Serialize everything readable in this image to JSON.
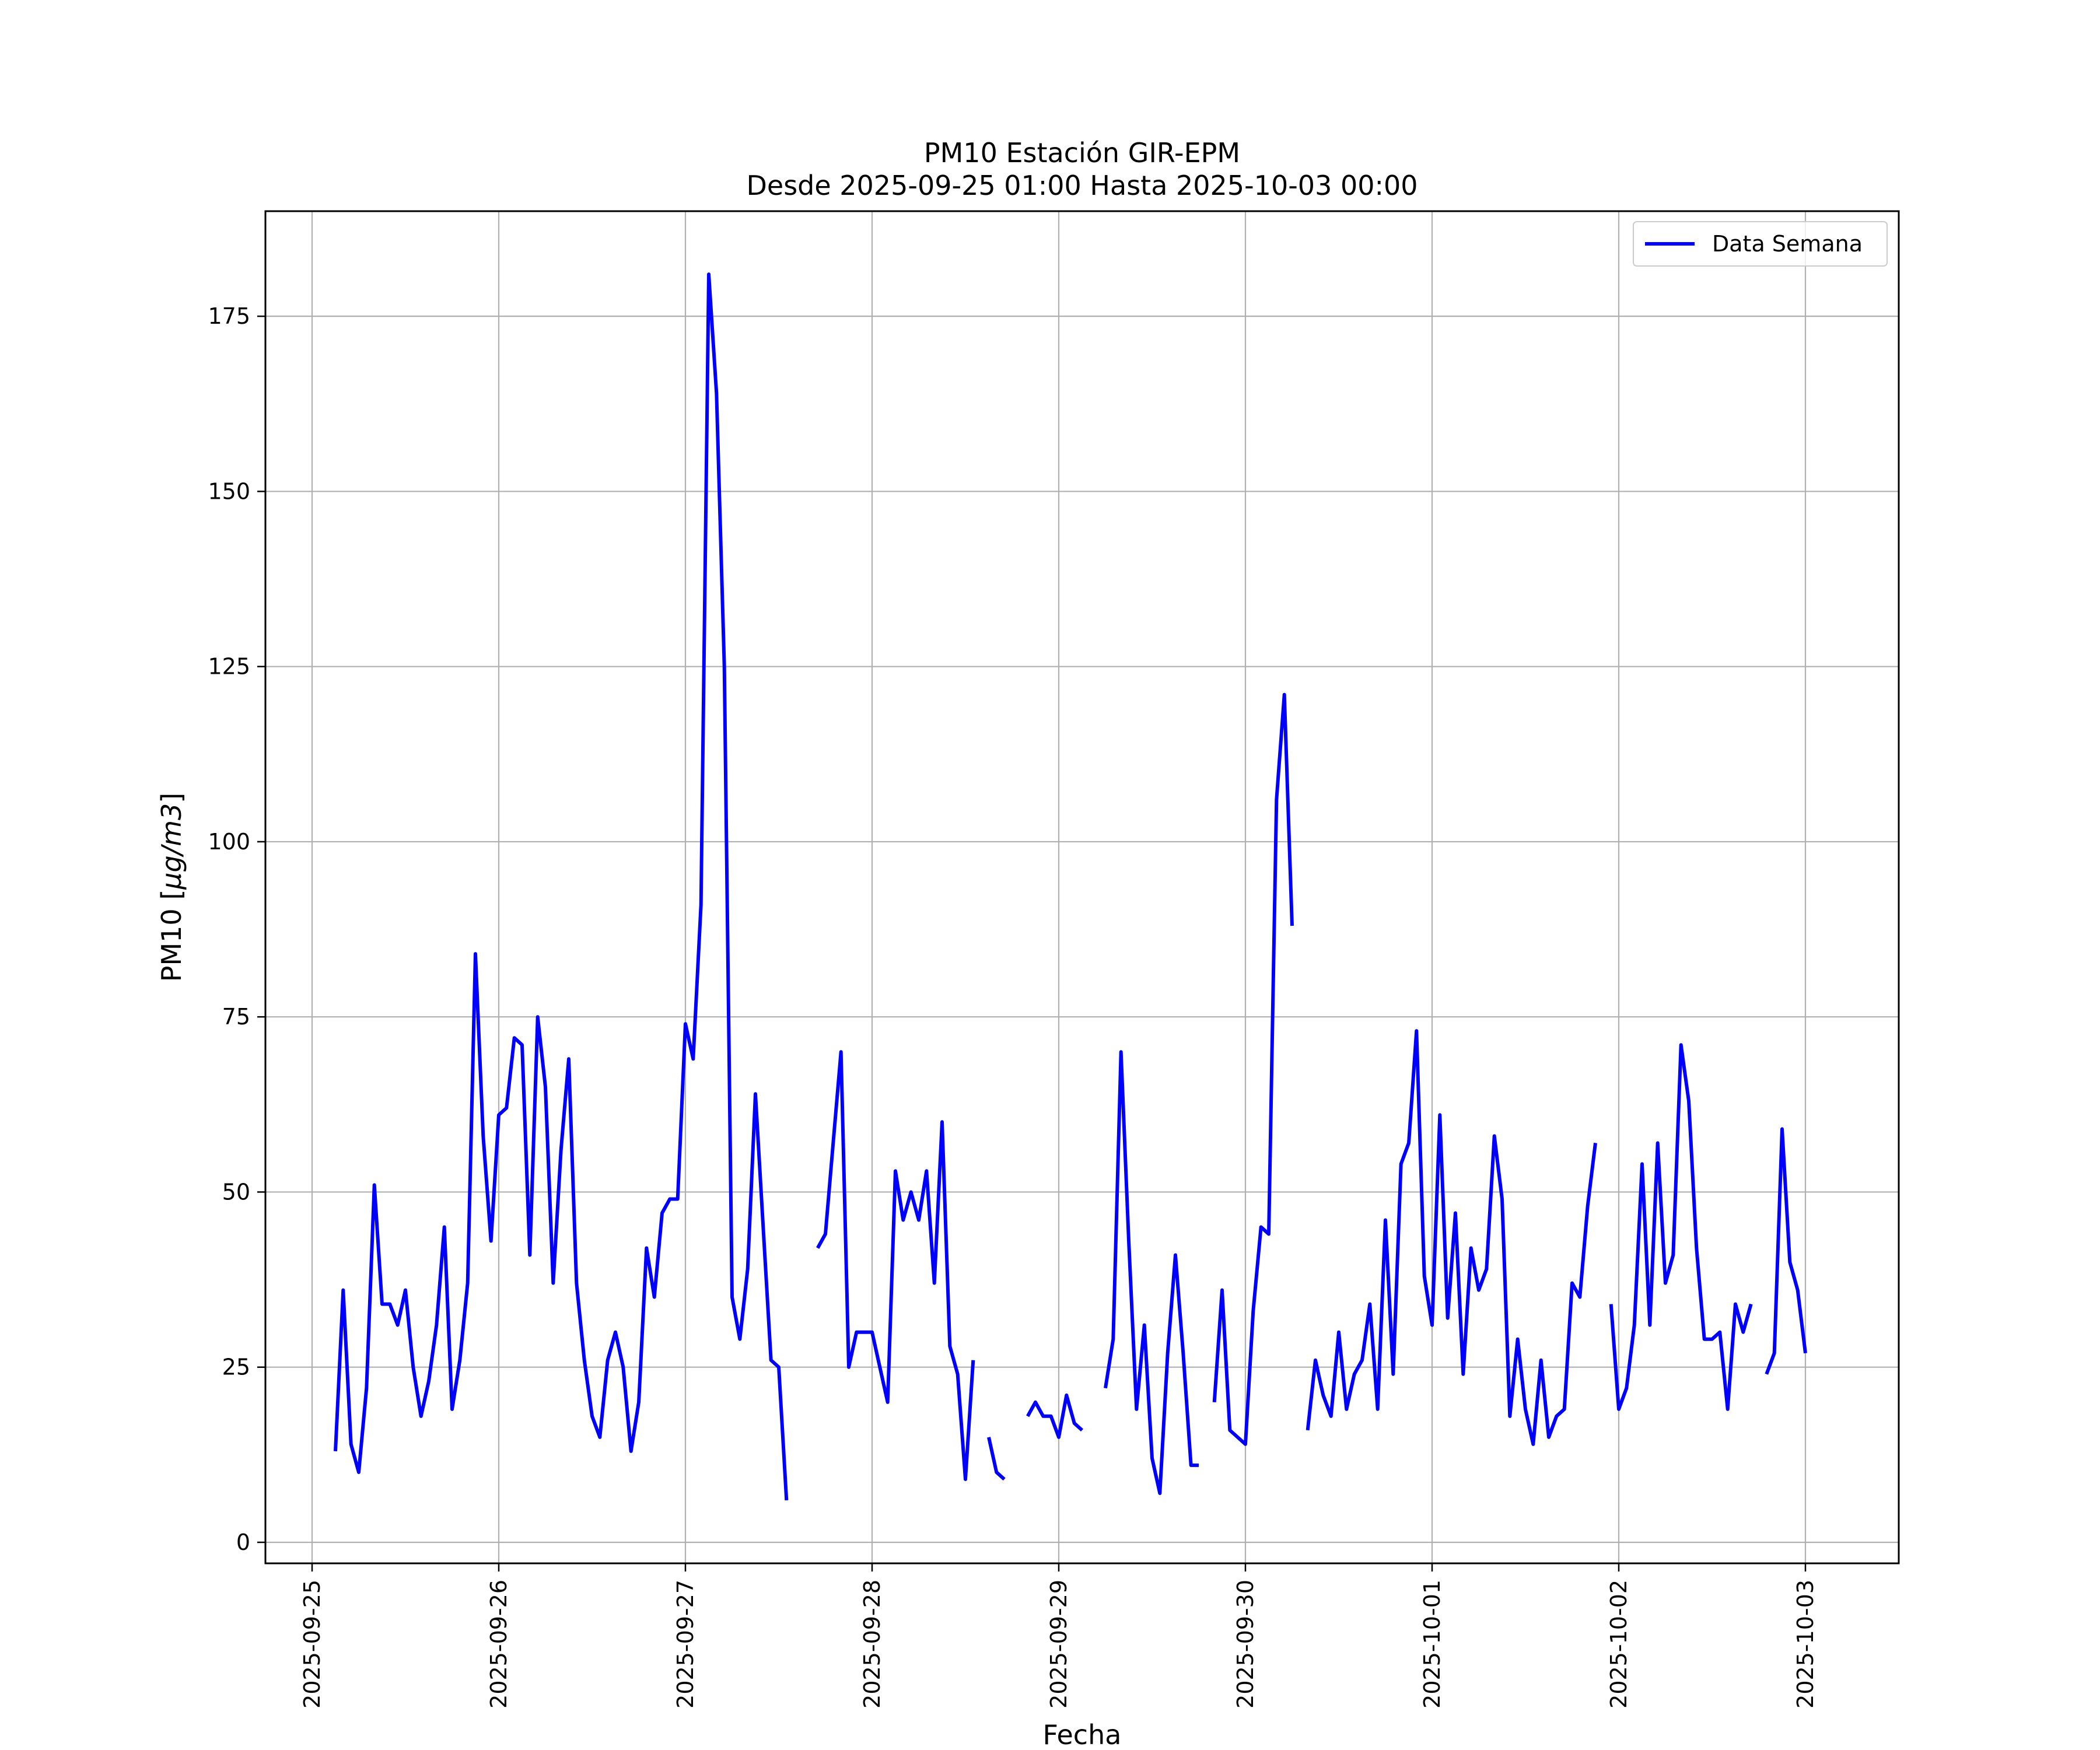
{
  "chart_data": {
    "type": "line",
    "title": "PM10 Estación GIR-EPM",
    "subtitle": "Desde 2025-09-25 01:00 Hasta 2025-10-03 00:00",
    "xlabel": "Fecha",
    "ylabel_prefix": "PM10 [",
    "ylabel_unit": "μg/m3",
    "ylabel_suffix": "]",
    "ylim": [
      -3,
      190
    ],
    "xlim": [
      "2025-09-24 18:00",
      "2025-10-03 12:00"
    ],
    "grid": true,
    "legend_position": "top-right",
    "x_ticks": [
      "2025-09-25",
      "2025-09-26",
      "2025-09-27",
      "2025-09-28",
      "2025-09-29",
      "2025-09-30",
      "2025-10-01",
      "2025-10-02",
      "2025-10-03"
    ],
    "y_ticks": [
      0,
      25,
      50,
      75,
      100,
      125,
      150,
      175
    ],
    "series": [
      {
        "name": "Data Semana",
        "color": "#0000ff",
        "segments": [
          [
            [
              "2025-09-25 03:00",
              13
            ],
            [
              "2025-09-25 04:00",
              36
            ],
            [
              "2025-09-25 05:00",
              14
            ],
            [
              "2025-09-25 06:00",
              10
            ],
            [
              "2025-09-25 07:00",
              22
            ],
            [
              "2025-09-25 08:00",
              51
            ],
            [
              "2025-09-25 09:00",
              34
            ],
            [
              "2025-09-25 10:00",
              34
            ],
            [
              "2025-09-25 11:00",
              31
            ],
            [
              "2025-09-25 12:00",
              36
            ],
            [
              "2025-09-25 13:00",
              25
            ],
            [
              "2025-09-25 14:00",
              18
            ],
            [
              "2025-09-25 15:00",
              23
            ],
            [
              "2025-09-25 16:00",
              31
            ],
            [
              "2025-09-25 17:00",
              45
            ],
            [
              "2025-09-25 18:00",
              19
            ],
            [
              "2025-09-25 19:00",
              26
            ],
            [
              "2025-09-25 20:00",
              37
            ],
            [
              "2025-09-25 21:00",
              84
            ],
            [
              "2025-09-25 22:00",
              58
            ],
            [
              "2025-09-25 23:00",
              43
            ],
            [
              "2025-09-26 00:00",
              61
            ],
            [
              "2025-09-26 01:00",
              62
            ],
            [
              "2025-09-26 02:00",
              72
            ],
            [
              "2025-09-26 03:00",
              71
            ],
            [
              "2025-09-26 04:00",
              41
            ],
            [
              "2025-09-26 05:00",
              75
            ],
            [
              "2025-09-26 06:00",
              65
            ],
            [
              "2025-09-26 07:00",
              37
            ],
            [
              "2025-09-26 08:00",
              56
            ],
            [
              "2025-09-26 09:00",
              69
            ],
            [
              "2025-09-26 10:00",
              37
            ],
            [
              "2025-09-26 11:00",
              26
            ],
            [
              "2025-09-26 12:00",
              18
            ],
            [
              "2025-09-26 13:00",
              15
            ],
            [
              "2025-09-26 14:00",
              26
            ],
            [
              "2025-09-26 15:00",
              30
            ],
            [
              "2025-09-26 16:00",
              25
            ],
            [
              "2025-09-26 17:00",
              13
            ],
            [
              "2025-09-26 18:00",
              20
            ],
            [
              "2025-09-26 19:00",
              42
            ],
            [
              "2025-09-26 20:00",
              35
            ],
            [
              "2025-09-26 21:00",
              47
            ],
            [
              "2025-09-26 22:00",
              49
            ],
            [
              "2025-09-26 23:00",
              49
            ],
            [
              "2025-09-27 00:00",
              74
            ],
            [
              "2025-09-27 01:00",
              69
            ],
            [
              "2025-09-27 02:00",
              91
            ],
            [
              "2025-09-27 03:00",
              181
            ],
            [
              "2025-09-27 04:00",
              164
            ],
            [
              "2025-09-27 05:00",
              125
            ],
            [
              "2025-09-27 06:00",
              35
            ],
            [
              "2025-09-27 07:00",
              29
            ],
            [
              "2025-09-27 08:00",
              39
            ],
            [
              "2025-09-27 09:00",
              64
            ],
            [
              "2025-09-27 10:00",
              45
            ],
            [
              "2025-09-27 11:00",
              26
            ],
            [
              "2025-09-27 12:00",
              25
            ],
            [
              "2025-09-27 13:00",
              6
            ]
          ],
          [
            [
              "2025-09-27 17:00",
              42
            ],
            [
              "2025-09-27 18:00",
              44
            ],
            [
              "2025-09-27 19:00",
              57
            ],
            [
              "2025-09-27 20:00",
              70
            ],
            [
              "2025-09-27 21:00",
              25
            ],
            [
              "2025-09-27 22:00",
              30
            ],
            [
              "2025-09-27 23:00",
              30
            ],
            [
              "2025-09-28 00:00",
              30
            ],
            [
              "2025-09-28 01:00",
              25
            ],
            [
              "2025-09-28 02:00",
              20
            ],
            [
              "2025-09-28 03:00",
              53
            ],
            [
              "2025-09-28 04:00",
              46
            ],
            [
              "2025-09-28 05:00",
              50
            ],
            [
              "2025-09-28 06:00",
              46
            ],
            [
              "2025-09-28 07:00",
              53
            ],
            [
              "2025-09-28 08:00",
              37
            ],
            [
              "2025-09-28 09:00",
              60
            ],
            [
              "2025-09-28 10:00",
              28
            ],
            [
              "2025-09-28 11:00",
              24
            ],
            [
              "2025-09-28 12:00",
              9
            ],
            [
              "2025-09-28 13:00",
              26
            ]
          ],
          [
            [
              "2025-09-28 15:00",
              15
            ],
            [
              "2025-09-28 16:00",
              10
            ],
            [
              "2025-09-28 17:00",
              9
            ]
          ],
          [
            [
              "2025-09-28 20:00",
              18
            ],
            [
              "2025-09-28 21:00",
              20
            ],
            [
              "2025-09-28 22:00",
              18
            ],
            [
              "2025-09-28 23:00",
              18
            ],
            [
              "2025-09-29 00:00",
              15
            ],
            [
              "2025-09-29 01:00",
              21
            ],
            [
              "2025-09-29 02:00",
              17
            ],
            [
              "2025-09-29 03:00",
              16
            ]
          ],
          [
            [
              "2025-09-29 06:00",
              22
            ],
            [
              "2025-09-29 07:00",
              29
            ],
            [
              "2025-09-29 08:00",
              70
            ],
            [
              "2025-09-29 09:00",
              43
            ],
            [
              "2025-09-29 10:00",
              19
            ],
            [
              "2025-09-29 11:00",
              31
            ],
            [
              "2025-09-29 12:00",
              12
            ],
            [
              "2025-09-29 13:00",
              7
            ],
            [
              "2025-09-29 14:00",
              27
            ],
            [
              "2025-09-29 15:00",
              41
            ],
            [
              "2025-09-29 16:00",
              27
            ],
            [
              "2025-09-29 17:00",
              11
            ],
            [
              "2025-09-29 18:00",
              11
            ]
          ],
          [
            [
              "2025-09-29 20:00",
              20
            ],
            [
              "2025-09-29 21:00",
              36
            ],
            [
              "2025-09-29 22:00",
              16
            ],
            [
              "2025-09-29 23:00",
              15
            ],
            [
              "2025-09-30 00:00",
              14
            ],
            [
              "2025-09-30 01:00",
              33
            ],
            [
              "2025-09-30 02:00",
              45
            ],
            [
              "2025-09-30 03:00",
              44
            ],
            [
              "2025-09-30 04:00",
              106
            ],
            [
              "2025-09-30 05:00",
              121
            ],
            [
              "2025-09-30 06:00",
              88
            ]
          ],
          [
            [
              "2025-09-30 08:00",
              16
            ],
            [
              "2025-09-30 09:00",
              26
            ],
            [
              "2025-09-30 10:00",
              21
            ],
            [
              "2025-09-30 11:00",
              18
            ],
            [
              "2025-09-30 12:00",
              30
            ],
            [
              "2025-09-30 13:00",
              19
            ],
            [
              "2025-09-30 14:00",
              24
            ],
            [
              "2025-09-30 15:00",
              26
            ],
            [
              "2025-09-30 16:00",
              34
            ],
            [
              "2025-09-30 17:00",
              19
            ],
            [
              "2025-09-30 18:00",
              46
            ],
            [
              "2025-09-30 19:00",
              24
            ],
            [
              "2025-09-30 20:00",
              54
            ],
            [
              "2025-09-30 21:00",
              57
            ],
            [
              "2025-09-30 22:00",
              73
            ],
            [
              "2025-09-30 23:00",
              38
            ],
            [
              "2025-10-01 00:00",
              31
            ],
            [
              "2025-10-01 01:00",
              61
            ],
            [
              "2025-10-01 02:00",
              32
            ],
            [
              "2025-10-01 03:00",
              47
            ],
            [
              "2025-10-01 04:00",
              24
            ],
            [
              "2025-10-01 05:00",
              42
            ],
            [
              "2025-10-01 06:00",
              36
            ],
            [
              "2025-10-01 07:00",
              39
            ],
            [
              "2025-10-01 08:00",
              58
            ],
            [
              "2025-10-01 09:00",
              49
            ],
            [
              "2025-10-01 10:00",
              18
            ],
            [
              "2025-10-01 11:00",
              29
            ],
            [
              "2025-10-01 12:00",
              19
            ],
            [
              "2025-10-01 13:00",
              14
            ],
            [
              "2025-10-01 14:00",
              26
            ],
            [
              "2025-10-01 15:00",
              15
            ],
            [
              "2025-10-01 16:00",
              18
            ],
            [
              "2025-10-01 17:00",
              19
            ],
            [
              "2025-10-01 18:00",
              37
            ],
            [
              "2025-10-01 19:00",
              35
            ],
            [
              "2025-10-01 20:00",
              48
            ],
            [
              "2025-10-01 21:00",
              57
            ]
          ],
          [
            [
              "2025-10-01 23:00",
              34
            ],
            [
              "2025-10-02 00:00",
              19
            ],
            [
              "2025-10-02 01:00",
              22
            ],
            [
              "2025-10-02 02:00",
              31
            ],
            [
              "2025-10-02 03:00",
              54
            ],
            [
              "2025-10-02 04:00",
              31
            ],
            [
              "2025-10-02 05:00",
              57
            ],
            [
              "2025-10-02 06:00",
              37
            ],
            [
              "2025-10-02 07:00",
              41
            ],
            [
              "2025-10-02 08:00",
              71
            ],
            [
              "2025-10-02 09:00",
              63
            ],
            [
              "2025-10-02 10:00",
              42
            ],
            [
              "2025-10-02 11:00",
              29
            ],
            [
              "2025-10-02 12:00",
              29
            ],
            [
              "2025-10-02 13:00",
              30
            ],
            [
              "2025-10-02 14:00",
              19
            ],
            [
              "2025-10-02 15:00",
              34
            ],
            [
              "2025-10-02 16:00",
              30
            ],
            [
              "2025-10-02 17:00",
              34
            ]
          ],
          [
            [
              "2025-10-02 19:00",
              24
            ],
            [
              "2025-10-02 20:00",
              27
            ],
            [
              "2025-10-02 21:00",
              59
            ],
            [
              "2025-10-02 22:00",
              40
            ],
            [
              "2025-10-02 23:00",
              36
            ],
            [
              "2025-10-03 00:00",
              27
            ]
          ]
        ]
      }
    ]
  }
}
